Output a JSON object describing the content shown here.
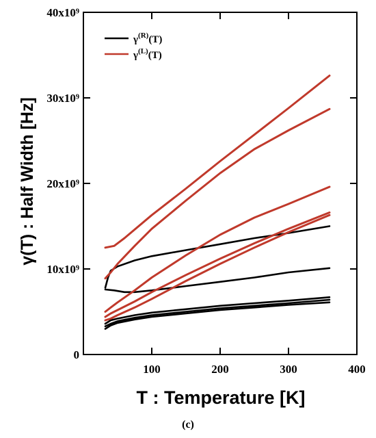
{
  "chart_data": {
    "type": "line",
    "xlabel": "T : Temperature [K]",
    "ylabel": "γ(T) : Half Width [Hz]",
    "xlim": [
      0,
      400
    ],
    "ylim": [
      0,
      40000000000
    ],
    "x_ticks": [
      100,
      200,
      300,
      400
    ],
    "x_tick_labels": [
      "100",
      "200",
      "300",
      "400"
    ],
    "y_ticks": [
      0,
      10000000000,
      20000000000,
      30000000000,
      40000000000
    ],
    "y_tick_labels": [
      "0",
      "10x10⁹",
      "20x10⁹",
      "30x10⁹",
      "40x10⁹"
    ],
    "grid": false,
    "legend": {
      "placement": "top-left",
      "entries": [
        {
          "main": "γ",
          "sup": "(R)",
          "tail": "(T)",
          "color": "#000000"
        },
        {
          "main": "γ",
          "sup": "(L)",
          "tail": "(T)",
          "color": "#c0392b"
        }
      ]
    },
    "series": [
      {
        "group": "R",
        "color": "#000000",
        "points": [
          [
            32,
            7800000000.0
          ],
          [
            36,
            9000000000.0
          ],
          [
            40,
            9800000000.0
          ],
          [
            50,
            10300000000.0
          ],
          [
            75,
            11000000000.0
          ],
          [
            100,
            11500000000.0
          ],
          [
            150,
            12200000000.0
          ],
          [
            200,
            12900000000.0
          ],
          [
            250,
            13600000000.0
          ],
          [
            300,
            14200000000.0
          ],
          [
            360,
            15000000000.0
          ]
        ]
      },
      {
        "group": "R",
        "color": "#000000",
        "points": [
          [
            32,
            7600000000.0
          ],
          [
            45,
            7500000000.0
          ],
          [
            60,
            7300000000.0
          ],
          [
            75,
            7300000000.0
          ],
          [
            100,
            7500000000.0
          ],
          [
            150,
            8000000000.0
          ],
          [
            200,
            8500000000.0
          ],
          [
            250,
            9000000000.0
          ],
          [
            300,
            9600000000.0
          ],
          [
            360,
            10100000000.0
          ]
        ]
      },
      {
        "group": "R",
        "color": "#000000",
        "points": [
          [
            32,
            3600000000.0
          ],
          [
            40,
            4000000000.0
          ],
          [
            50,
            4200000000.0
          ],
          [
            75,
            4600000000.0
          ],
          [
            100,
            4900000000.0
          ],
          [
            150,
            5300000000.0
          ],
          [
            200,
            5700000000.0
          ],
          [
            250,
            6000000000.0
          ],
          [
            300,
            6300000000.0
          ],
          [
            360,
            6700000000.0
          ]
        ]
      },
      {
        "group": "R",
        "color": "#000000",
        "points": [
          [
            32,
            3300000000.0
          ],
          [
            40,
            3600000000.0
          ],
          [
            50,
            3900000000.0
          ],
          [
            75,
            4300000000.0
          ],
          [
            100,
            4600000000.0
          ],
          [
            150,
            5000000000.0
          ],
          [
            200,
            5400000000.0
          ],
          [
            250,
            5700000000.0
          ],
          [
            300,
            6000000000.0
          ],
          [
            360,
            6400000000.0
          ]
        ]
      },
      {
        "group": "R",
        "color": "#000000",
        "points": [
          [
            32,
            3000000000.0
          ],
          [
            40,
            3400000000.0
          ],
          [
            50,
            3700000000.0
          ],
          [
            75,
            4100000000.0
          ],
          [
            100,
            4400000000.0
          ],
          [
            150,
            4800000000.0
          ],
          [
            200,
            5200000000.0
          ],
          [
            250,
            5500000000.0
          ],
          [
            300,
            5800000000.0
          ],
          [
            360,
            6100000000.0
          ]
        ]
      },
      {
        "group": "L",
        "color": "#c0392b",
        "points": [
          [
            32,
            12500000000.0
          ],
          [
            45,
            12700000000.0
          ],
          [
            60,
            13600000000.0
          ],
          [
            100,
            16300000000.0
          ],
          [
            150,
            19400000000.0
          ],
          [
            200,
            22600000000.0
          ],
          [
            250,
            25700000000.0
          ],
          [
            300,
            28800000000.0
          ],
          [
            360,
            32600000000.0
          ]
        ]
      },
      {
        "group": "L",
        "color": "#c0392b",
        "points": [
          [
            32,
            8900000000.0
          ],
          [
            40,
            9600000000.0
          ],
          [
            50,
            10600000000.0
          ],
          [
            75,
            12700000000.0
          ],
          [
            100,
            14700000000.0
          ],
          [
            150,
            18000000000.0
          ],
          [
            200,
            21200000000.0
          ],
          [
            250,
            24000000000.0
          ],
          [
            300,
            26200000000.0
          ],
          [
            360,
            28700000000.0
          ]
        ]
      },
      {
        "group": "L",
        "color": "#c0392b",
        "points": [
          [
            32,
            5000000000.0
          ],
          [
            40,
            5500000000.0
          ],
          [
            50,
            6100000000.0
          ],
          [
            75,
            7500000000.0
          ],
          [
            100,
            9000000000.0
          ],
          [
            150,
            11600000000.0
          ],
          [
            200,
            14000000000.0
          ],
          [
            250,
            16000000000.0
          ],
          [
            300,
            17600000000.0
          ],
          [
            360,
            19600000000.0
          ]
        ]
      },
      {
        "group": "L",
        "color": "#c0392b",
        "points": [
          [
            32,
            4400000000.0
          ],
          [
            40,
            4800000000.0
          ],
          [
            50,
            5200000000.0
          ],
          [
            75,
            6200000000.0
          ],
          [
            100,
            7300000000.0
          ],
          [
            150,
            9300000000.0
          ],
          [
            200,
            11200000000.0
          ],
          [
            250,
            13000000000.0
          ],
          [
            300,
            14700000000.0
          ],
          [
            360,
            16600000000.0
          ]
        ]
      },
      {
        "group": "L",
        "color": "#c0392b",
        "points": [
          [
            32,
            4000000000.0
          ],
          [
            40,
            4200000000.0
          ],
          [
            50,
            4600000000.0
          ],
          [
            75,
            5500000000.0
          ],
          [
            100,
            6500000000.0
          ],
          [
            150,
            8600000000.0
          ],
          [
            200,
            10600000000.0
          ],
          [
            250,
            12500000000.0
          ],
          [
            300,
            14300000000.0
          ],
          [
            360,
            16300000000.0
          ]
        ]
      }
    ]
  },
  "caption": "(c)"
}
